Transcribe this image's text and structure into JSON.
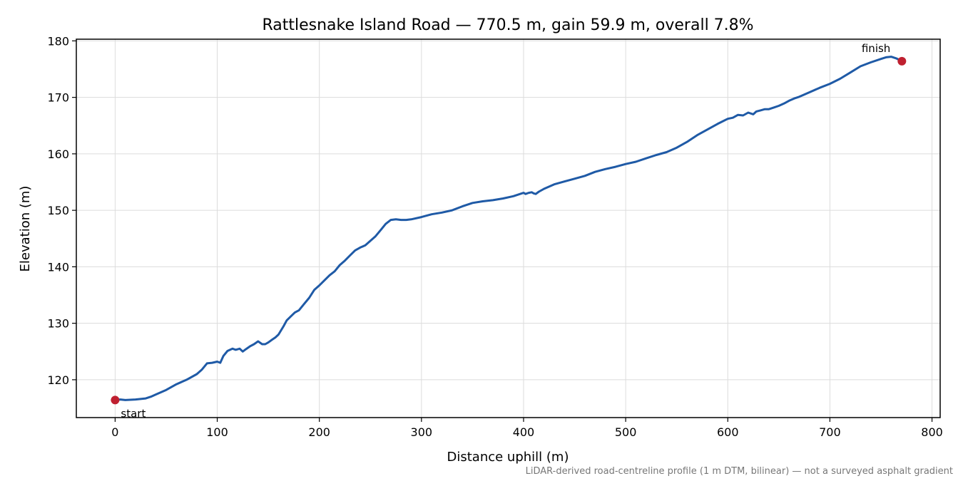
{
  "chart_data": {
    "type": "line",
    "title": "Rattlesnake Island Road — 770.5 m, gain 59.9 m, overall 7.8%",
    "xlabel": "Distance uphill (m)",
    "ylabel": "Elevation (m)",
    "xlim": [
      -38,
      808
    ],
    "ylim": [
      113.3,
      180.3
    ],
    "xticks": [
      0,
      100,
      200,
      300,
      400,
      500,
      600,
      700,
      800
    ],
    "yticks": [
      120,
      130,
      140,
      150,
      160,
      170,
      180
    ],
    "grid": true,
    "footnote": "LiDAR-derived road-centreline profile (1 m DTM, bilinear) — not a surveyed asphalt gradient",
    "series": [
      {
        "color": "#1f5aa6",
        "x": [
          0,
          5,
          10,
          20,
          30,
          35,
          40,
          50,
          60,
          70,
          80,
          85,
          90,
          95,
          100,
          103,
          106,
          110,
          115,
          118,
          122,
          125,
          128,
          132,
          136,
          140,
          144,
          147,
          150,
          153,
          157,
          160,
          165,
          168,
          172,
          176,
          180,
          185,
          190,
          195,
          200,
          205,
          210,
          215,
          220,
          225,
          230,
          235,
          240,
          245,
          250,
          255,
          260,
          265,
          270,
          275,
          280,
          285,
          290,
          300,
          310,
          320,
          330,
          340,
          350,
          360,
          370,
          380,
          390,
          400,
          402,
          405,
          408,
          410,
          412,
          415,
          420,
          430,
          440,
          450,
          460,
          470,
          480,
          490,
          500,
          510,
          520,
          530,
          540,
          550,
          560,
          570,
          580,
          590,
          600,
          605,
          610,
          615,
          620,
          625,
          628,
          632,
          636,
          640,
          645,
          650,
          655,
          660,
          665,
          670,
          680,
          690,
          700,
          710,
          720,
          730,
          740,
          750,
          755,
          760,
          765,
          770.5
        ],
        "y": [
          116.4,
          116.5,
          116.4,
          116.5,
          116.7,
          117.0,
          117.4,
          118.2,
          119.2,
          120.0,
          121.0,
          121.8,
          122.9,
          123.0,
          123.2,
          123.0,
          124.2,
          125.1,
          125.5,
          125.3,
          125.5,
          125.0,
          125.4,
          125.9,
          126.3,
          126.8,
          126.3,
          126.3,
          126.6,
          127.0,
          127.5,
          128.0,
          129.5,
          130.5,
          131.2,
          131.9,
          132.3,
          133.4,
          134.5,
          135.9,
          136.7,
          137.6,
          138.5,
          139.2,
          140.3,
          141.1,
          142.0,
          142.9,
          143.4,
          143.8,
          144.6,
          145.4,
          146.5,
          147.6,
          148.3,
          148.4,
          148.3,
          148.3,
          148.4,
          148.8,
          149.3,
          149.6,
          150.0,
          150.7,
          151.3,
          151.6,
          151.8,
          152.1,
          152.5,
          153.1,
          152.9,
          153.1,
          153.2,
          153.0,
          152.9,
          153.3,
          153.8,
          154.6,
          155.1,
          155.6,
          156.1,
          156.8,
          157.3,
          157.7,
          158.2,
          158.6,
          159.2,
          159.8,
          160.3,
          161.1,
          162.1,
          163.3,
          164.3,
          165.3,
          166.2,
          166.4,
          166.9,
          166.8,
          167.3,
          167.0,
          167.5,
          167.7,
          167.9,
          167.9,
          168.2,
          168.5,
          168.9,
          169.4,
          169.8,
          170.1,
          170.9,
          171.7,
          172.4,
          173.3,
          174.4,
          175.5,
          176.2,
          176.8,
          177.1,
          177.2,
          176.9,
          176.4
        ]
      }
    ],
    "markers": [
      {
        "x": 0,
        "y": 116.4,
        "label": "start",
        "color": "#bf2030"
      },
      {
        "x": 770.5,
        "y": 176.4,
        "label": "finish",
        "color": "#bf2030"
      }
    ]
  }
}
